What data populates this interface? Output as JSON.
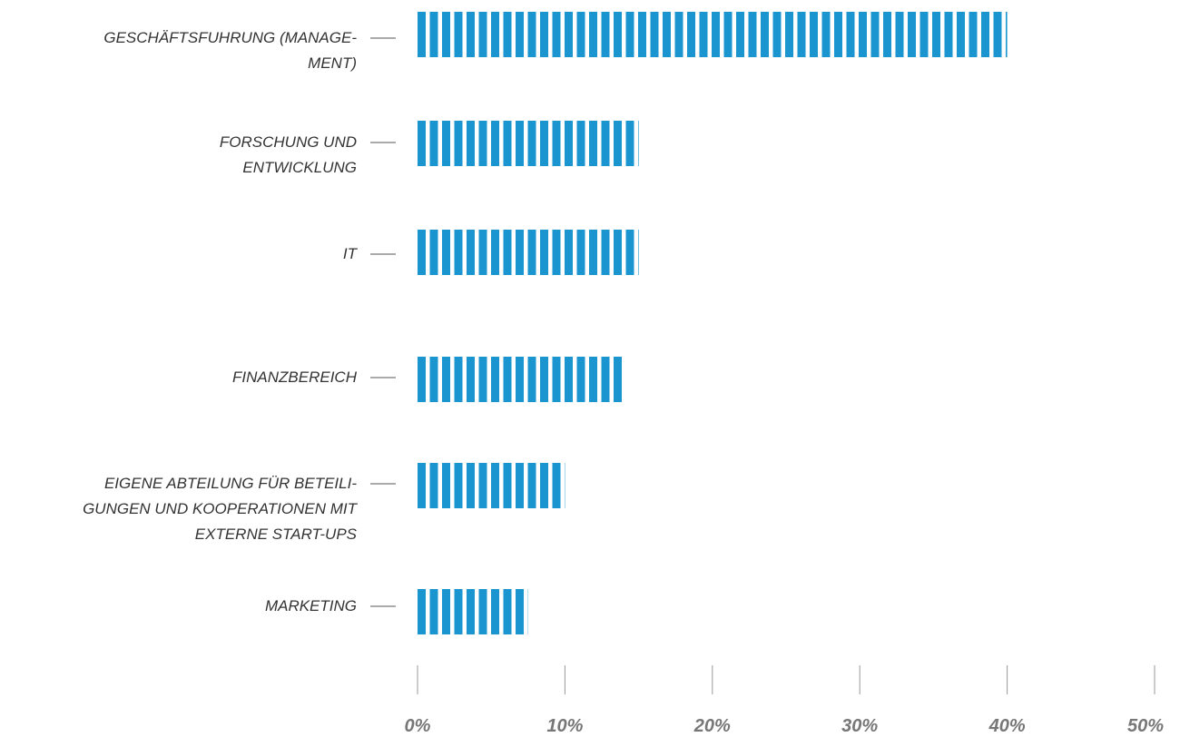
{
  "chart_data": {
    "type": "bar",
    "orientation": "horizontal",
    "categories": [
      "GESCHÄFTSFUHRUNG (MANAGE-\nMENT)",
      "FORSCHUNG UND\nENTWICKLUNG",
      "IT",
      "FINANZBEREICH",
      "EIGENE ABTEILUNG FÜR BETEILI-\nGUNGEN UND KOOPERATIONEN MIT\nEXTERNE START-UPS",
      "MARKETING"
    ],
    "values": [
      40,
      15,
      15,
      14,
      10,
      7.5
    ],
    "color": "#1b95d0",
    "xlim": [
      0,
      50
    ],
    "xticks": [
      {
        "value": 0,
        "label": "0%"
      },
      {
        "value": 10,
        "label": "10%"
      },
      {
        "value": 20,
        "label": "20%"
      },
      {
        "value": 30,
        "label": "30%"
      },
      {
        "value": 40,
        "label": "40%"
      },
      {
        "value": 50,
        "label": "50%"
      }
    ]
  }
}
